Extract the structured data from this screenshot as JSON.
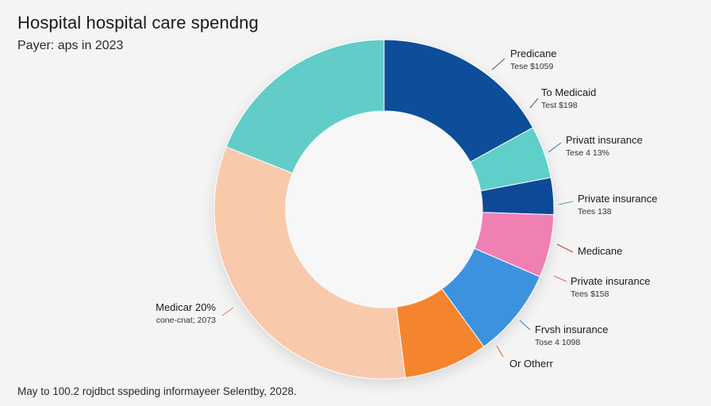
{
  "title": "Hospital hospital care spendng",
  "subtitle": "Payer: aps in 2023",
  "footer": "May to 100.2 rojdbct sspeding informayeer Selentby, 2028.",
  "chart_data": {
    "type": "pie",
    "variant": "donut",
    "title": "Hospital hospital care spendng",
    "subtitle": "Payer: aps in 2023",
    "slices": [
      {
        "name": "Predicane",
        "value_text": "Tese $1059",
        "value": 17,
        "color": "#0d4e9a"
      },
      {
        "name": "Private insurance",
        "value_text": "Tees 138",
        "value": 5,
        "color": "#5ecfca"
      },
      {
        "name": "Medicane",
        "value_text": "",
        "value": 3.5,
        "color": "#0e4a97"
      },
      {
        "name": "Private insurance",
        "value_text": "Tees $158",
        "value": 6,
        "color": "#f080b4"
      },
      {
        "name": "Frvsh insurance",
        "value_text": "Tose 4 1098",
        "value": 8.5,
        "color": "#3e92e0"
      },
      {
        "name": "Or Otherr",
        "value_text": "",
        "value": 8,
        "color": "#f5842e"
      },
      {
        "name": "Medicar 20%",
        "value_text": "cone-cnat; 2073",
        "value": 33,
        "color": "#f9c9ab"
      },
      {
        "name": "",
        "value_text": "",
        "value": 19,
        "color": "#62ccc8"
      }
    ],
    "extra_labels": [
      {
        "name": "To Medicaid",
        "value_text": "Test $198"
      },
      {
        "name": "Privatt insurance",
        "value_text": "Tese 4 13%"
      }
    ]
  }
}
